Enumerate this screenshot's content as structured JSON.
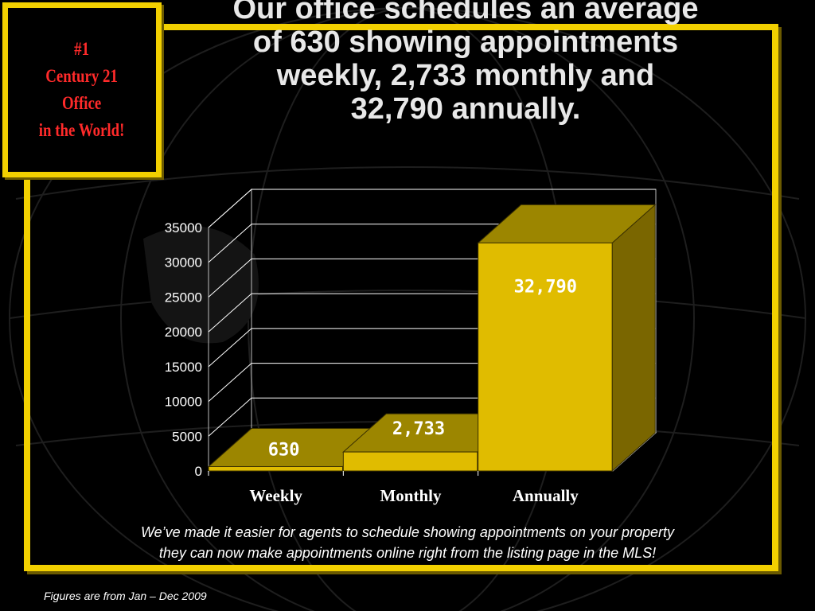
{
  "badge": {
    "lines": [
      "#1",
      "Century 21",
      "Office",
      "in the World!"
    ]
  },
  "title": {
    "lines": [
      "Our office schedules an average",
      "of 630 showing appointments",
      "weekly, 2,733 monthly and",
      "32,790 annually."
    ]
  },
  "note": {
    "lines": [
      "We’ve made it easier for agents to schedule showing appointments on your property",
      "they can now make appointments online right from the listing page in the MLS!"
    ]
  },
  "source": "Figures are from Jan – Dec 2009",
  "colors": {
    "frame": "#f2d000",
    "badge_text": "#ff2a2a",
    "bar_front": "#e0bc00",
    "bar_top": "#9c8600",
    "bar_side": "#7a6600",
    "grid": "#ffffff"
  },
  "chart_data": {
    "type": "bar",
    "title": "",
    "xlabel": "",
    "ylabel": "",
    "categories": [
      "Weekly",
      "Monthly",
      "Annually"
    ],
    "values": [
      630,
      2733,
      32790
    ],
    "data_labels": [
      "630",
      "2,733",
      "32,790"
    ],
    "ylim": [
      0,
      35000
    ],
    "yticks": [
      0,
      5000,
      10000,
      15000,
      20000,
      25000,
      30000,
      35000
    ],
    "grid": true,
    "style": "3d"
  }
}
